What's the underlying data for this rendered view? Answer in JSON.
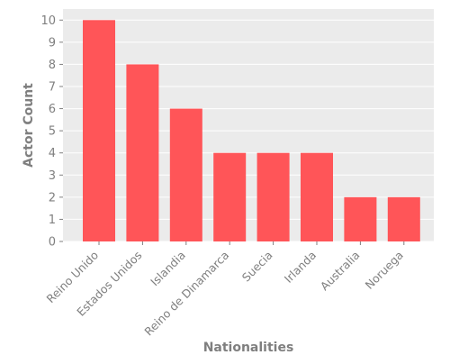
{
  "chart_data": {
    "type": "bar",
    "title": "",
    "xlabel": "Nationalities",
    "ylabel": "Actor Count",
    "categories": [
      "Reino Unido",
      "Estados Unidos",
      "Islandia",
      "Reino de Dinamarca",
      "Suecia",
      "Irlanda",
      "Australia",
      "Noruega"
    ],
    "values": [
      10,
      8,
      6,
      4,
      4,
      4,
      2,
      2
    ],
    "ylim": [
      0,
      10.5
    ],
    "yticks": [
      0,
      1,
      2,
      3,
      4,
      5,
      6,
      7,
      8,
      9,
      10
    ],
    "grid": true,
    "legend": "none",
    "colors": {
      "bar": "#FF5558",
      "panel": "#EBEBEB",
      "grid": "#FFFFFF",
      "tick_text": "#7F7F7F",
      "axis_label": "#7F7F7F"
    }
  }
}
